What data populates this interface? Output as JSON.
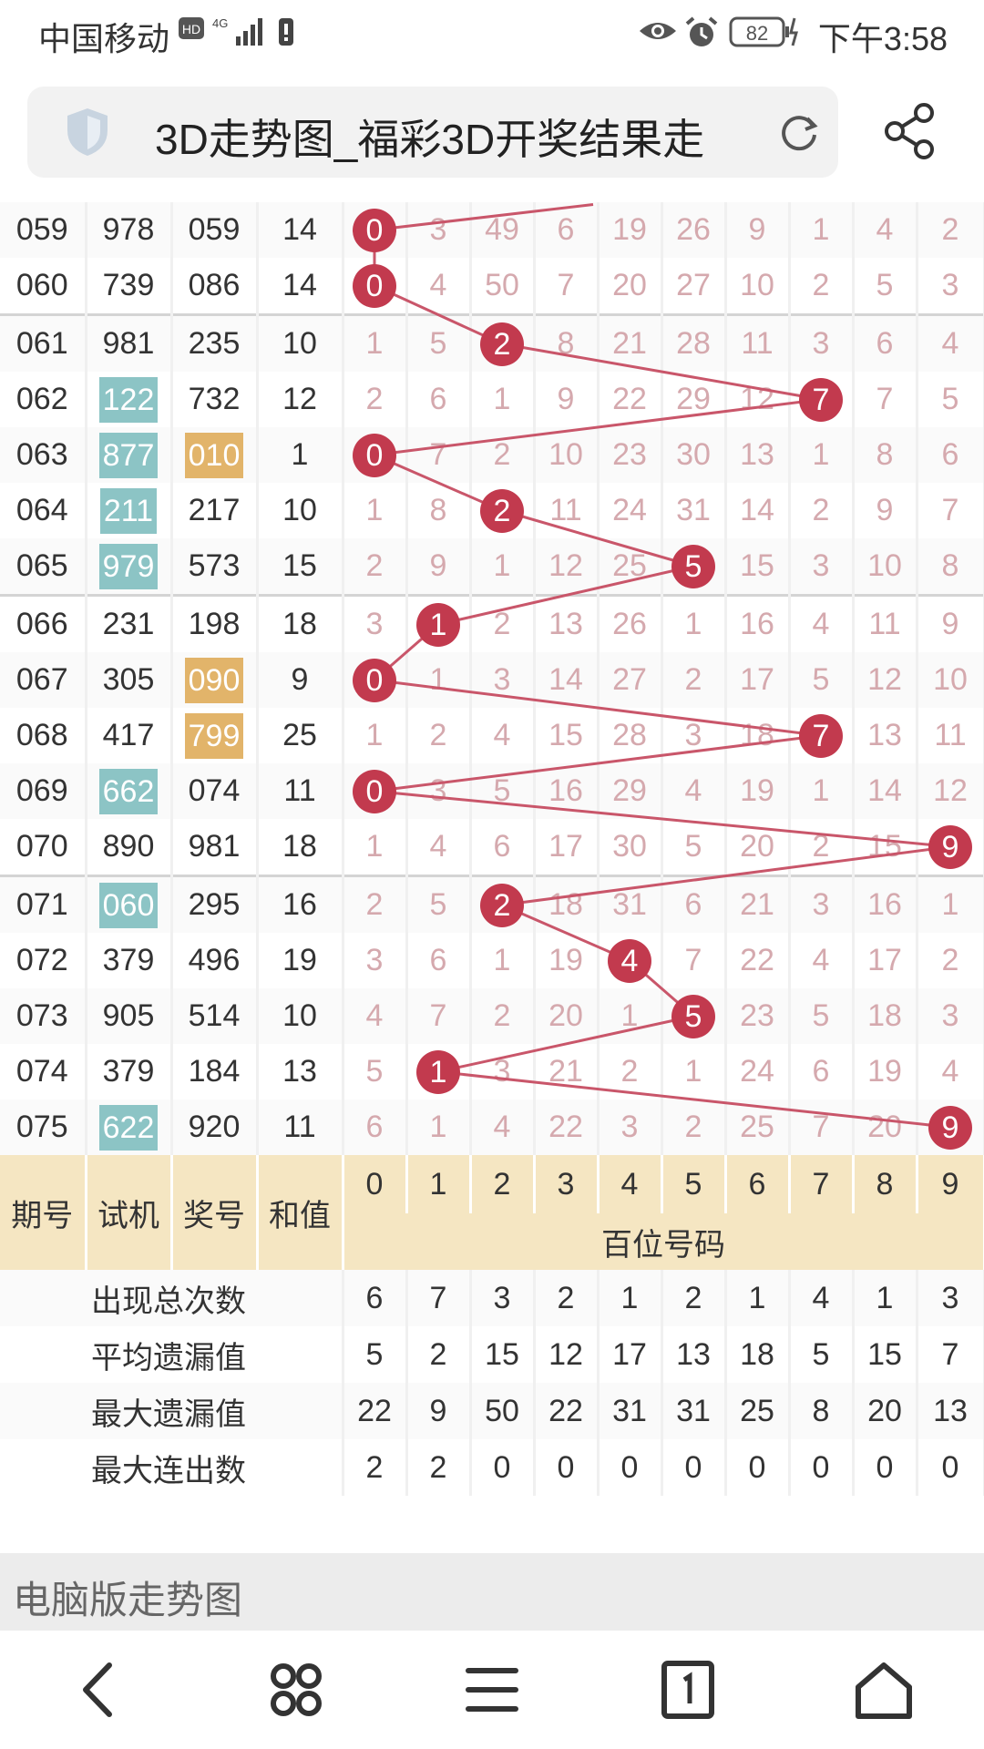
{
  "status_bar": {
    "carrier": "中国移动",
    "hd": "HD",
    "signal": "4G",
    "battery": "82",
    "time": "下午3:58"
  },
  "browser": {
    "title": "3D走势图_福彩3D开奖结果走"
  },
  "rows": [
    {
      "period": "059",
      "trial": "978",
      "trial_hl": "",
      "winning": "059",
      "winning_hl": "",
      "sum": "14",
      "hit": 0,
      "cells": [
        "0",
        "3",
        "49",
        "6",
        "19",
        "26",
        "9",
        "1",
        "4",
        "2"
      ]
    },
    {
      "period": "060",
      "trial": "739",
      "trial_hl": "",
      "winning": "086",
      "winning_hl": "",
      "sum": "14",
      "hit": 0,
      "cells": [
        "0",
        "4",
        "50",
        "7",
        "20",
        "27",
        "10",
        "2",
        "5",
        "3"
      ]
    },
    {
      "period": "061",
      "trial": "981",
      "trial_hl": "",
      "winning": "235",
      "winning_hl": "",
      "sum": "10",
      "hit": 2,
      "cells": [
        "1",
        "5",
        "2",
        "8",
        "21",
        "28",
        "11",
        "3",
        "6",
        "4"
      ]
    },
    {
      "period": "062",
      "trial": "122",
      "trial_hl": "teal",
      "winning": "732",
      "winning_hl": "",
      "sum": "12",
      "hit": 7,
      "cells": [
        "2",
        "6",
        "1",
        "9",
        "22",
        "29",
        "12",
        "7",
        "7",
        "5"
      ]
    },
    {
      "period": "063",
      "trial": "877",
      "trial_hl": "teal",
      "winning": "010",
      "winning_hl": "orange",
      "sum": "1",
      "hit": 0,
      "cells": [
        "0",
        "7",
        "2",
        "10",
        "23",
        "30",
        "13",
        "1",
        "8",
        "6"
      ]
    },
    {
      "period": "064",
      "trial": "211",
      "trial_hl": "teal",
      "winning": "217",
      "winning_hl": "",
      "sum": "10",
      "hit": 2,
      "cells": [
        "1",
        "8",
        "2",
        "11",
        "24",
        "31",
        "14",
        "2",
        "9",
        "7"
      ]
    },
    {
      "period": "065",
      "trial": "979",
      "trial_hl": "teal",
      "winning": "573",
      "winning_hl": "",
      "sum": "15",
      "hit": 5,
      "cells": [
        "2",
        "9",
        "1",
        "12",
        "25",
        "5",
        "15",
        "3",
        "10",
        "8"
      ]
    },
    {
      "period": "066",
      "trial": "231",
      "trial_hl": "",
      "winning": "198",
      "winning_hl": "",
      "sum": "18",
      "hit": 1,
      "cells": [
        "3",
        "1",
        "2",
        "13",
        "26",
        "1",
        "16",
        "4",
        "11",
        "9"
      ]
    },
    {
      "period": "067",
      "trial": "305",
      "trial_hl": "",
      "winning": "090",
      "winning_hl": "orange",
      "sum": "9",
      "hit": 0,
      "cells": [
        "0",
        "1",
        "3",
        "14",
        "27",
        "2",
        "17",
        "5",
        "12",
        "10"
      ]
    },
    {
      "period": "068",
      "trial": "417",
      "trial_hl": "",
      "winning": "799",
      "winning_hl": "orange",
      "sum": "25",
      "hit": 7,
      "cells": [
        "1",
        "2",
        "4",
        "15",
        "28",
        "3",
        "18",
        "7",
        "13",
        "11"
      ]
    },
    {
      "period": "069",
      "trial": "662",
      "trial_hl": "teal",
      "winning": "074",
      "winning_hl": "",
      "sum": "11",
      "hit": 0,
      "cells": [
        "0",
        "3",
        "5",
        "16",
        "29",
        "4",
        "19",
        "1",
        "14",
        "12"
      ]
    },
    {
      "period": "070",
      "trial": "890",
      "trial_hl": "",
      "winning": "981",
      "winning_hl": "",
      "sum": "18",
      "hit": 9,
      "cells": [
        "1",
        "4",
        "6",
        "17",
        "30",
        "5",
        "20",
        "2",
        "15",
        "9"
      ]
    },
    {
      "period": "071",
      "trial": "060",
      "trial_hl": "teal",
      "winning": "295",
      "winning_hl": "",
      "sum": "16",
      "hit": 2,
      "cells": [
        "2",
        "5",
        "2",
        "18",
        "31",
        "6",
        "21",
        "3",
        "16",
        "1"
      ]
    },
    {
      "period": "072",
      "trial": "379",
      "trial_hl": "",
      "winning": "496",
      "winning_hl": "",
      "sum": "19",
      "hit": 4,
      "cells": [
        "3",
        "6",
        "1",
        "19",
        "4",
        "7",
        "22",
        "4",
        "17",
        "2"
      ]
    },
    {
      "period": "073",
      "trial": "905",
      "trial_hl": "",
      "winning": "514",
      "winning_hl": "",
      "sum": "10",
      "hit": 5,
      "cells": [
        "4",
        "7",
        "2",
        "20",
        "1",
        "5",
        "23",
        "5",
        "18",
        "3"
      ]
    },
    {
      "period": "074",
      "trial": "379",
      "trial_hl": "",
      "winning": "184",
      "winning_hl": "",
      "sum": "13",
      "hit": 1,
      "cells": [
        "5",
        "1",
        "3",
        "21",
        "2",
        "1",
        "24",
        "6",
        "19",
        "4"
      ]
    },
    {
      "period": "075",
      "trial": "622",
      "trial_hl": "teal",
      "winning": "920",
      "winning_hl": "",
      "sum": "11",
      "hit": 9,
      "cells": [
        "6",
        "1",
        "4",
        "22",
        "3",
        "2",
        "25",
        "7",
        "20",
        "9"
      ]
    }
  ],
  "header": {
    "period": "期号",
    "trial": "试机",
    "winning": "奖号",
    "sum": "和值",
    "digits": [
      "0",
      "1",
      "2",
      "3",
      "4",
      "5",
      "6",
      "7",
      "8",
      "9"
    ],
    "group": "百位号码"
  },
  "stats": [
    {
      "label": "出现总次数",
      "values": [
        "6",
        "7",
        "3",
        "2",
        "1",
        "2",
        "1",
        "4",
        "1",
        "3"
      ]
    },
    {
      "label": "平均遗漏值",
      "values": [
        "5",
        "2",
        "15",
        "12",
        "17",
        "13",
        "18",
        "5",
        "15",
        "7"
      ]
    },
    {
      "label": "最大遗漏值",
      "values": [
        "22",
        "9",
        "50",
        "22",
        "31",
        "31",
        "25",
        "8",
        "20",
        "13"
      ]
    },
    {
      "label": "最大连出数",
      "values": [
        "2",
        "2",
        "0",
        "0",
        "0",
        "0",
        "0",
        "0",
        "0",
        "0"
      ]
    }
  ],
  "pc_link": "电脑版走势图",
  "colors": {
    "ball": "#c23a4e",
    "teal": "#8cc4c5",
    "orange": "#e2b46a",
    "header": "#f5e6c2"
  }
}
